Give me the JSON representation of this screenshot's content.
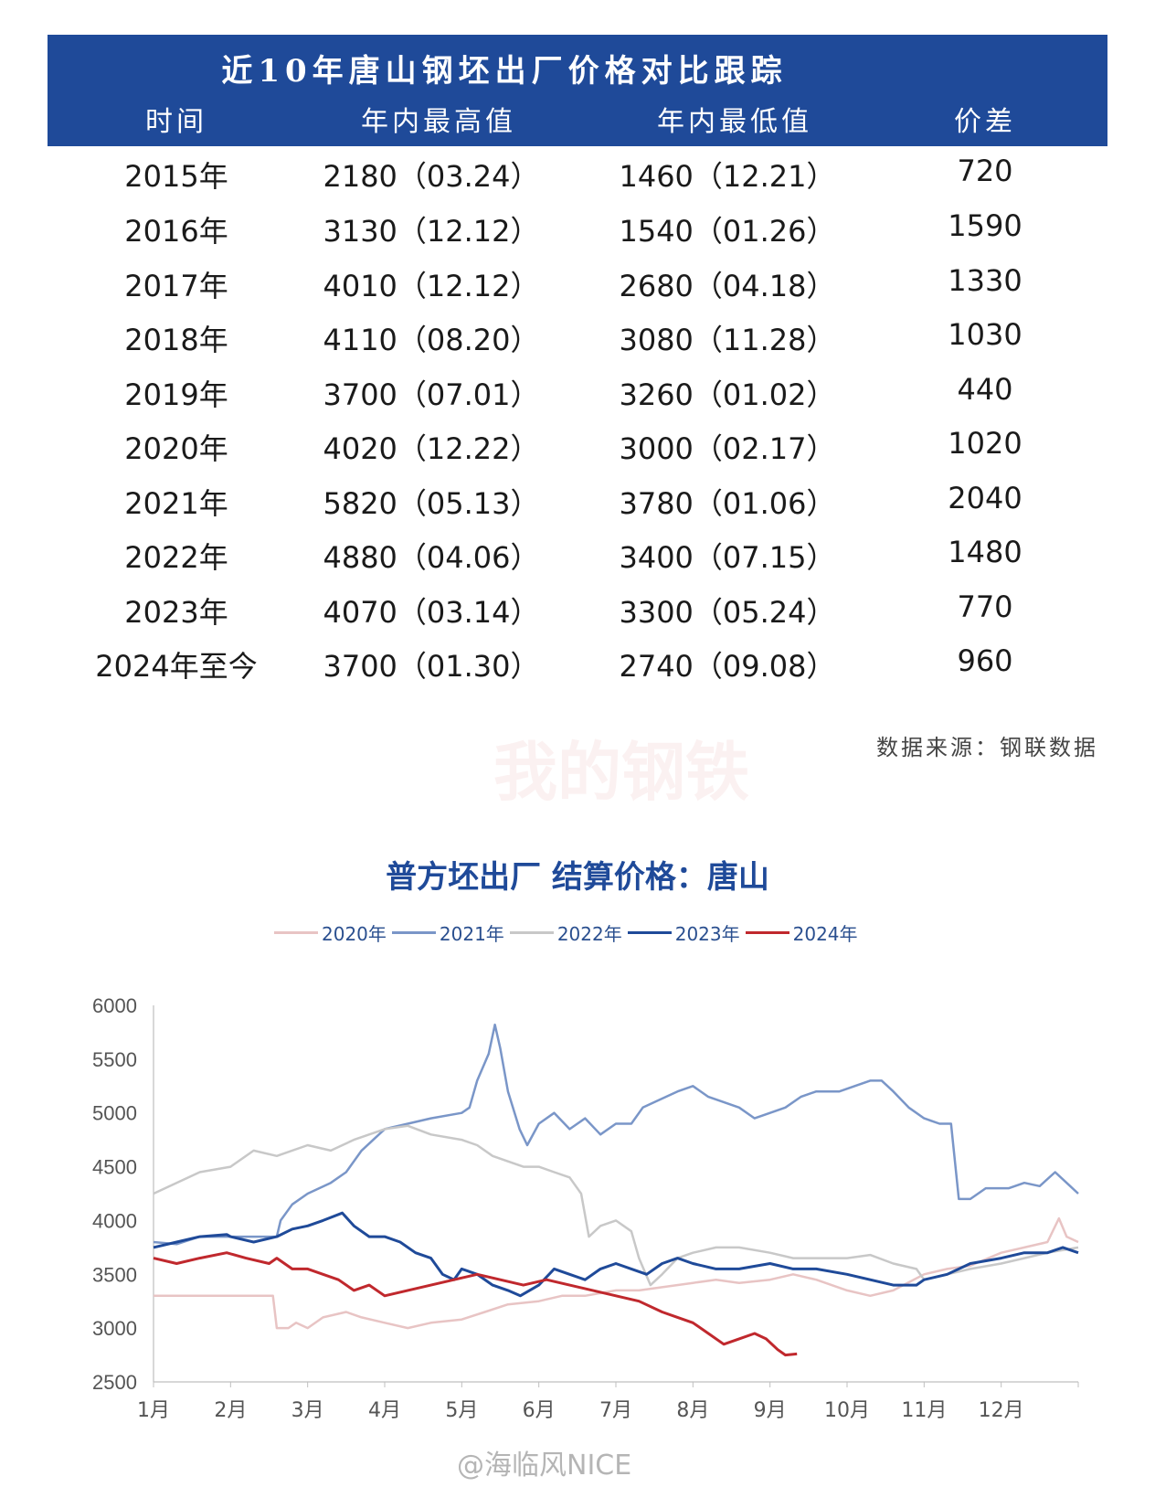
{
  "table": {
    "title": "近10年唐山钢坯出厂价格对比跟踪",
    "headers": [
      "时间",
      "年内最高值",
      "年内最低值",
      "价差"
    ],
    "rows": [
      [
        "2015年",
        "2180（03.24）",
        "1460（12.21）",
        "720"
      ],
      [
        "2016年",
        "3130（12.12）",
        "1540（01.26）",
        "1590"
      ],
      [
        "2017年",
        "4010（12.12）",
        "2680（04.18）",
        "1330"
      ],
      [
        "2018年",
        "4110（08.20）",
        "3080（11.28）",
        "1030"
      ],
      [
        "2019年",
        "3700（07.01）",
        "3260（01.02）",
        "440"
      ],
      [
        "2020年",
        "4020（12.22）",
        "3000（02.17）",
        "1020"
      ],
      [
        "2021年",
        "5820（05.13）",
        "3780（01.06）",
        "2040"
      ],
      [
        "2022年",
        "4880（04.06）",
        "3400（07.15）",
        "1480"
      ],
      [
        "2023年",
        "4070（03.14）",
        "3300（05.24）",
        "770"
      ],
      [
        "2024年至今",
        "3700（01.30）",
        "2740（09.08）",
        "960"
      ]
    ],
    "source": "数据来源：钢联数据"
  },
  "watermark": "我的钢铁",
  "credit": "@海临风NICE",
  "chart_data": {
    "type": "line",
    "title": "普方坯出厂 结算价格：唐山",
    "xlabel": "",
    "ylabel": "",
    "x_ticks": [
      "1月",
      "2月",
      "3月",
      "4月",
      "5月",
      "6月",
      "7月",
      "8月",
      "9月",
      "10月",
      "11月",
      "12月"
    ],
    "y_ticks": [
      2500,
      3000,
      3500,
      4000,
      4500,
      5000,
      5500,
      6000
    ],
    "ylim": [
      2500,
      6000
    ],
    "xlim": [
      1,
      13
    ],
    "grid": false,
    "legend_position": "top-center",
    "series": [
      {
        "name": "2020年",
        "color": "#e8c4c4",
        "points": [
          [
            1,
            3300
          ],
          [
            1.5,
            3300
          ],
          [
            2,
            3300
          ],
          [
            2.4,
            3300
          ],
          [
            2.55,
            3300
          ],
          [
            2.6,
            3000
          ],
          [
            2.75,
            3000
          ],
          [
            2.85,
            3050
          ],
          [
            3,
            3000
          ],
          [
            3.2,
            3100
          ],
          [
            3.5,
            3150
          ],
          [
            3.7,
            3100
          ],
          [
            4,
            3050
          ],
          [
            4.3,
            3000
          ],
          [
            4.6,
            3050
          ],
          [
            5,
            3080
          ],
          [
            5.3,
            3150
          ],
          [
            5.6,
            3220
          ],
          [
            6,
            3250
          ],
          [
            6.3,
            3300
          ],
          [
            6.6,
            3300
          ],
          [
            7,
            3350
          ],
          [
            7.3,
            3350
          ],
          [
            7.6,
            3380
          ],
          [
            8,
            3420
          ],
          [
            8.3,
            3450
          ],
          [
            8.6,
            3420
          ],
          [
            9,
            3450
          ],
          [
            9.3,
            3500
          ],
          [
            9.6,
            3450
          ],
          [
            10,
            3350
          ],
          [
            10.3,
            3300
          ],
          [
            10.6,
            3350
          ],
          [
            11,
            3500
          ],
          [
            11.3,
            3550
          ],
          [
            11.6,
            3580
          ],
          [
            12,
            3700
          ],
          [
            12.3,
            3750
          ],
          [
            12.6,
            3800
          ],
          [
            12.75,
            4020
          ],
          [
            12.85,
            3850
          ],
          [
            13,
            3800
          ]
        ]
      },
      {
        "name": "2021年",
        "color": "#7a96c8",
        "points": [
          [
            1,
            3800
          ],
          [
            1.3,
            3780
          ],
          [
            1.6,
            3850
          ],
          [
            2,
            3850
          ],
          [
            2.3,
            3850
          ],
          [
            2.6,
            3850
          ],
          [
            2.65,
            4000
          ],
          [
            2.8,
            4150
          ],
          [
            3,
            4250
          ],
          [
            3.3,
            4350
          ],
          [
            3.5,
            4450
          ],
          [
            3.7,
            4650
          ],
          [
            4,
            4850
          ],
          [
            4.3,
            4900
          ],
          [
            4.6,
            4950
          ],
          [
            5,
            5000
          ],
          [
            5.1,
            5050
          ],
          [
            5.2,
            5300
          ],
          [
            5.35,
            5550
          ],
          [
            5.43,
            5820
          ],
          [
            5.5,
            5600
          ],
          [
            5.6,
            5200
          ],
          [
            5.75,
            4850
          ],
          [
            5.85,
            4700
          ],
          [
            6,
            4900
          ],
          [
            6.2,
            5000
          ],
          [
            6.4,
            4850
          ],
          [
            6.6,
            4950
          ],
          [
            6.8,
            4800
          ],
          [
            7,
            4900
          ],
          [
            7.2,
            4900
          ],
          [
            7.35,
            5050
          ],
          [
            7.5,
            5100
          ],
          [
            7.8,
            5200
          ],
          [
            8,
            5250
          ],
          [
            8.2,
            5150
          ],
          [
            8.4,
            5100
          ],
          [
            8.6,
            5050
          ],
          [
            8.8,
            4950
          ],
          [
            9,
            5000
          ],
          [
            9.2,
            5050
          ],
          [
            9.4,
            5150
          ],
          [
            9.6,
            5200
          ],
          [
            9.9,
            5200
          ],
          [
            10.1,
            5250
          ],
          [
            10.3,
            5300
          ],
          [
            10.45,
            5300
          ],
          [
            10.6,
            5200
          ],
          [
            10.8,
            5050
          ],
          [
            11,
            4950
          ],
          [
            11.2,
            4900
          ],
          [
            11.35,
            4900
          ],
          [
            11.45,
            4200
          ],
          [
            11.6,
            4200
          ],
          [
            11.8,
            4300
          ],
          [
            12.1,
            4300
          ],
          [
            12.3,
            4350
          ],
          [
            12.5,
            4320
          ],
          [
            12.7,
            4450
          ],
          [
            12.85,
            4350
          ],
          [
            13,
            4250
          ]
        ]
      },
      {
        "name": "2022年",
        "color": "#c8c8c8",
        "points": [
          [
            1,
            4250
          ],
          [
            1.3,
            4350
          ],
          [
            1.6,
            4450
          ],
          [
            2,
            4500
          ],
          [
            2.3,
            4650
          ],
          [
            2.6,
            4600
          ],
          [
            3,
            4700
          ],
          [
            3.3,
            4650
          ],
          [
            3.6,
            4750
          ],
          [
            4,
            4850
          ],
          [
            4.3,
            4880
          ],
          [
            4.6,
            4800
          ],
          [
            5,
            4750
          ],
          [
            5.2,
            4700
          ],
          [
            5.4,
            4600
          ],
          [
            5.6,
            4550
          ],
          [
            5.8,
            4500
          ],
          [
            6,
            4500
          ],
          [
            6.2,
            4450
          ],
          [
            6.4,
            4400
          ],
          [
            6.55,
            4250
          ],
          [
            6.65,
            3850
          ],
          [
            6.8,
            3950
          ],
          [
            7,
            4000
          ],
          [
            7.2,
            3900
          ],
          [
            7.3,
            3650
          ],
          [
            7.45,
            3400
          ],
          [
            7.6,
            3500
          ],
          [
            7.8,
            3650
          ],
          [
            8,
            3700
          ],
          [
            8.3,
            3750
          ],
          [
            8.6,
            3750
          ],
          [
            9,
            3700
          ],
          [
            9.3,
            3650
          ],
          [
            9.6,
            3650
          ],
          [
            10,
            3650
          ],
          [
            10.3,
            3680
          ],
          [
            10.6,
            3600
          ],
          [
            10.9,
            3550
          ],
          [
            11,
            3450
          ],
          [
            11.3,
            3500
          ],
          [
            11.6,
            3550
          ],
          [
            12,
            3600
          ],
          [
            12.3,
            3650
          ],
          [
            12.6,
            3700
          ],
          [
            13,
            3750
          ]
        ]
      },
      {
        "name": "2023年",
        "color": "#1f4a99",
        "points": [
          [
            1,
            3750
          ],
          [
            1.3,
            3800
          ],
          [
            1.6,
            3850
          ],
          [
            1.95,
            3870
          ],
          [
            2,
            3850
          ],
          [
            2.3,
            3800
          ],
          [
            2.6,
            3850
          ],
          [
            2.8,
            3920
          ],
          [
            3,
            3950
          ],
          [
            3.2,
            4000
          ],
          [
            3.45,
            4070
          ],
          [
            3.6,
            3950
          ],
          [
            3.8,
            3850
          ],
          [
            4,
            3850
          ],
          [
            4.2,
            3800
          ],
          [
            4.4,
            3700
          ],
          [
            4.6,
            3650
          ],
          [
            4.75,
            3500
          ],
          [
            4.9,
            3450
          ],
          [
            5,
            3550
          ],
          [
            5.2,
            3500
          ],
          [
            5.4,
            3400
          ],
          [
            5.6,
            3350
          ],
          [
            5.76,
            3300
          ],
          [
            6,
            3400
          ],
          [
            6.2,
            3550
          ],
          [
            6.4,
            3500
          ],
          [
            6.6,
            3450
          ],
          [
            6.8,
            3550
          ],
          [
            7,
            3600
          ],
          [
            7.2,
            3550
          ],
          [
            7.4,
            3500
          ],
          [
            7.6,
            3600
          ],
          [
            7.8,
            3650
          ],
          [
            8,
            3600
          ],
          [
            8.3,
            3550
          ],
          [
            8.6,
            3550
          ],
          [
            9,
            3600
          ],
          [
            9.3,
            3550
          ],
          [
            9.6,
            3550
          ],
          [
            10,
            3500
          ],
          [
            10.3,
            3450
          ],
          [
            10.6,
            3400
          ],
          [
            10.9,
            3400
          ],
          [
            11,
            3450
          ],
          [
            11.3,
            3500
          ],
          [
            11.6,
            3600
          ],
          [
            12,
            3650
          ],
          [
            12.3,
            3700
          ],
          [
            12.6,
            3700
          ],
          [
            12.8,
            3750
          ],
          [
            13,
            3700
          ]
        ]
      },
      {
        "name": "2024年",
        "color": "#c0282d",
        "points": [
          [
            1,
            3650
          ],
          [
            1.3,
            3600
          ],
          [
            1.6,
            3650
          ],
          [
            1.95,
            3700
          ],
          [
            2.2,
            3650
          ],
          [
            2.5,
            3600
          ],
          [
            2.6,
            3650
          ],
          [
            2.8,
            3550
          ],
          [
            3,
            3550
          ],
          [
            3.2,
            3500
          ],
          [
            3.4,
            3450
          ],
          [
            3.6,
            3350
          ],
          [
            3.8,
            3400
          ],
          [
            4,
            3300
          ],
          [
            4.3,
            3350
          ],
          [
            4.6,
            3400
          ],
          [
            4.9,
            3450
          ],
          [
            5.2,
            3500
          ],
          [
            5.5,
            3450
          ],
          [
            5.8,
            3400
          ],
          [
            6.1,
            3450
          ],
          [
            6.4,
            3400
          ],
          [
            6.7,
            3350
          ],
          [
            7,
            3300
          ],
          [
            7.3,
            3250
          ],
          [
            7.6,
            3150
          ],
          [
            7.8,
            3100
          ],
          [
            8,
            3050
          ],
          [
            8.2,
            2950
          ],
          [
            8.4,
            2850
          ],
          [
            8.6,
            2900
          ],
          [
            8.8,
            2950
          ],
          [
            8.95,
            2900
          ],
          [
            9.1,
            2800
          ],
          [
            9.2,
            2750
          ],
          [
            9.35,
            2760
          ]
        ]
      }
    ]
  }
}
